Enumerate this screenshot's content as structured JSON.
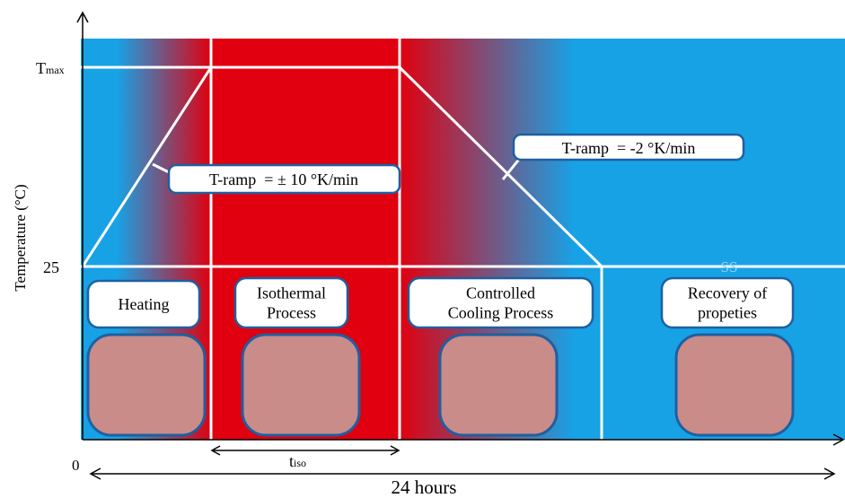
{
  "axis": {
    "y_label": "Temperature (°C)",
    "t_max": {
      "main": "T",
      "sub": "max"
    },
    "t_25": "25",
    "origin": "0",
    "x_label": "24 hours",
    "t_iso": {
      "main": "t",
      "sub": "iso"
    }
  },
  "ramps": [
    "T-ramp  = ± 10 °K/min",
    "T-ramp  = -2 °K/min"
  ],
  "ss_label": "SS",
  "stages": [
    [
      "Heating"
    ],
    [
      "Isothermal",
      "Process"
    ],
    [
      "Controlled",
      "Cooling Process"
    ],
    [
      "Recovery of",
      "propeties"
    ]
  ]
}
